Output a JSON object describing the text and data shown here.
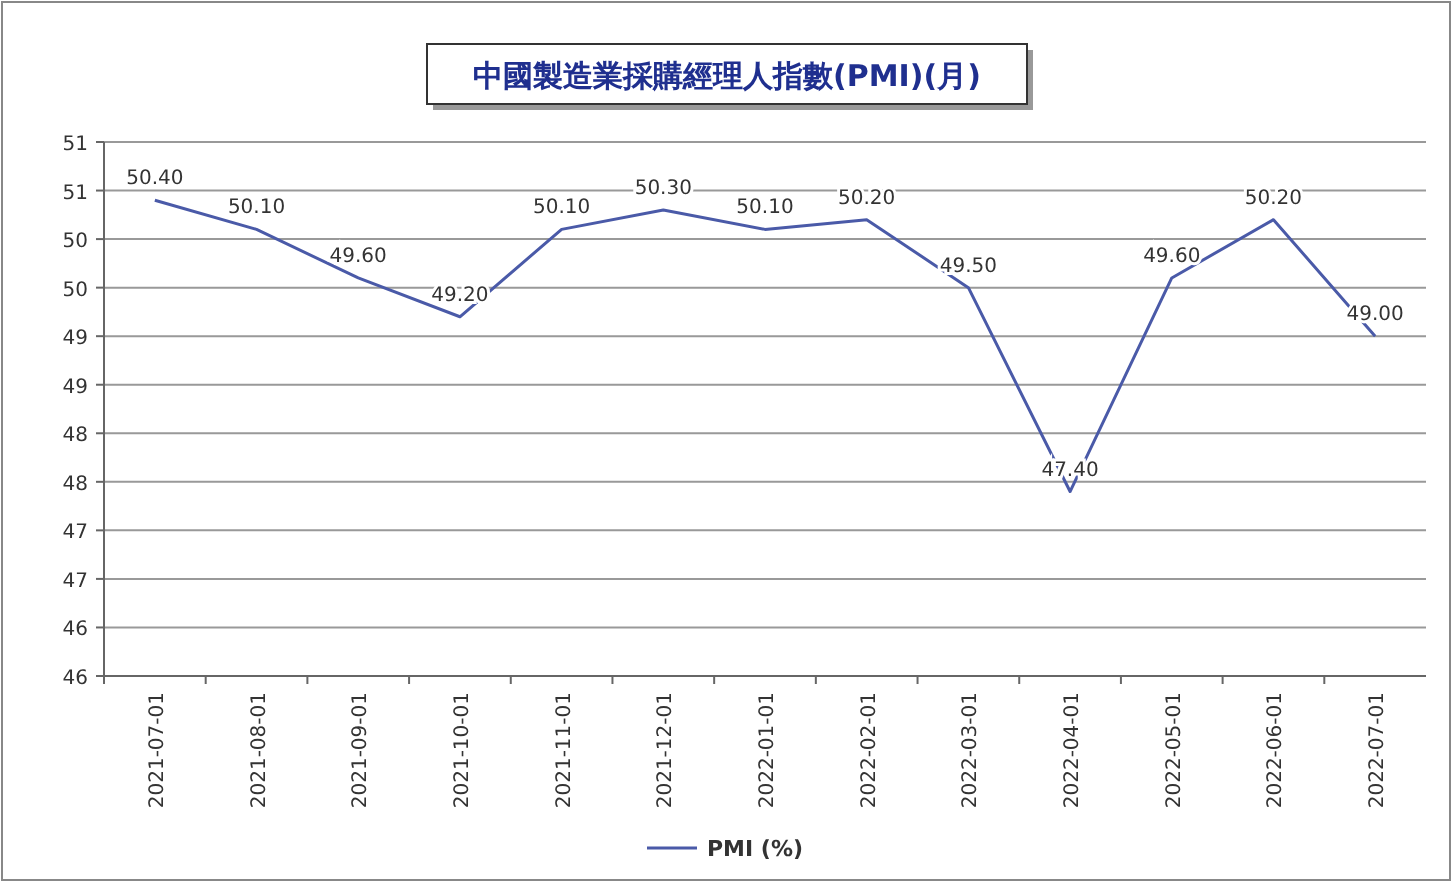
{
  "chart_data": {
    "type": "line",
    "title": "中國製造業採購經理人指數(PMI)(月)",
    "categories": [
      "2021-07-01",
      "2021-08-01",
      "2021-09-01",
      "2021-10-01",
      "2021-11-01",
      "2021-12-01",
      "2022-01-01",
      "2022-02-01",
      "2022-03-01",
      "2022-04-01",
      "2022-05-01",
      "2022-06-01",
      "2022-07-01"
    ],
    "series": [
      {
        "name": "PMI (%)",
        "color": "#4a5aa8",
        "values": [
          50.4,
          50.1,
          49.6,
          49.2,
          50.1,
          50.3,
          50.1,
          50.2,
          49.5,
          47.4,
          49.6,
          50.2,
          49.0
        ],
        "value_labels": [
          "50.40",
          "50.10",
          "49.60",
          "49.20",
          "50.10",
          "50.30",
          "50.10",
          "50.20",
          "49.50",
          "47.40",
          "49.60",
          "50.20",
          "49.00"
        ]
      }
    ],
    "ylim": [
      45.5,
      51
    ],
    "yticks": [
      {
        "value": 45.5,
        "label": "46"
      },
      {
        "value": 46,
        "label": "46"
      },
      {
        "value": 46.5,
        "label": "47"
      },
      {
        "value": 47,
        "label": "47"
      },
      {
        "value": 47.5,
        "label": "48"
      },
      {
        "value": 48,
        "label": "48"
      },
      {
        "value": 48.5,
        "label": "49"
      },
      {
        "value": 49,
        "label": "49"
      },
      {
        "value": 49.5,
        "label": "50"
      },
      {
        "value": 50,
        "label": "50"
      },
      {
        "value": 50.5,
        "label": "51"
      },
      {
        "value": 51,
        "label": "51"
      }
    ],
    "grid": "y",
    "legend": "bottom",
    "marker": "none",
    "line_style": "solid"
  }
}
